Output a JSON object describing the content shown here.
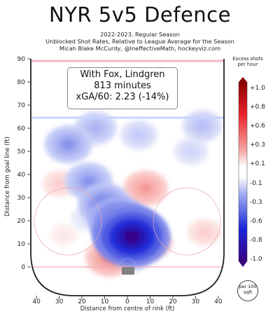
{
  "header": {
    "title": "NYR 5v5 Defence",
    "subtitle1": "2022-2023, Regular Season",
    "subtitle2": "Unblocked Shot Rates, Relative to League Average for the Season",
    "subtitle3": "Micah Blake McCurdy, @IneffectiveMath, hockeyviz.com"
  },
  "infobox": {
    "line1": "With Fox, Lindgren",
    "line2": "813 minutes",
    "line3": "xGA/60: 2.23 (-14%)"
  },
  "colorbar": {
    "title": "Excess shots per hour",
    "ticks": [
      "+1.0",
      "+0.8",
      "+0.6",
      "+0.3",
      "+0.1",
      "-0.1",
      "-0.3",
      "-0.6",
      "-0.8",
      "-1.0"
    ],
    "unit_badge": "per 100 sqft",
    "colors": {
      "high": "#8b0000",
      "mid": "#ffffff",
      "low": "#3a0080"
    }
  },
  "chart_data": {
    "type": "heatmap",
    "title": "NYR 5v5 Defence",
    "xlabel": "Distance from centre of rink (ft)",
    "ylabel": "Distance from goal line (ft)",
    "xlim": [
      -42.5,
      42.5
    ],
    "ylim": [
      -11,
      90
    ],
    "x_ticks": [
      "40",
      "30",
      "20",
      "10",
      "0",
      "10",
      "20",
      "30",
      "40"
    ],
    "y_ticks": [
      "0",
      "10",
      "20",
      "30",
      "40",
      "50",
      "60",
      "70",
      "80",
      "90"
    ],
    "color_range": [
      -1.0,
      1.0
    ],
    "regions": [
      {
        "x": 2,
        "y": 13,
        "value": -1.0
      },
      {
        "x": 0,
        "y": 15,
        "value": -0.9
      },
      {
        "x": -4,
        "y": 20,
        "value": -0.7
      },
      {
        "x": -10,
        "y": 27,
        "value": -0.55
      },
      {
        "x": -17,
        "y": 37,
        "value": -0.45
      },
      {
        "x": -26,
        "y": 53,
        "value": -0.45
      },
      {
        "x": -14,
        "y": 60,
        "value": -0.35
      },
      {
        "x": 5,
        "y": 57,
        "value": -0.25
      },
      {
        "x": 28,
        "y": 50,
        "value": -0.2
      },
      {
        "x": 33,
        "y": 61,
        "value": -0.3
      },
      {
        "x": 2,
        "y": 4,
        "value": -0.25
      },
      {
        "x": -18,
        "y": 21,
        "value": -0.15
      },
      {
        "x": -8,
        "y": 4,
        "value": 0.45
      },
      {
        "x": 8,
        "y": 34,
        "value": 0.4
      },
      {
        "x": 12,
        "y": 10,
        "value": 0.25
      },
      {
        "x": -30,
        "y": 36,
        "value": 0.2
      },
      {
        "x": 34,
        "y": 15,
        "value": 0.2
      },
      {
        "x": -28,
        "y": 14,
        "value": 0.1
      }
    ]
  }
}
